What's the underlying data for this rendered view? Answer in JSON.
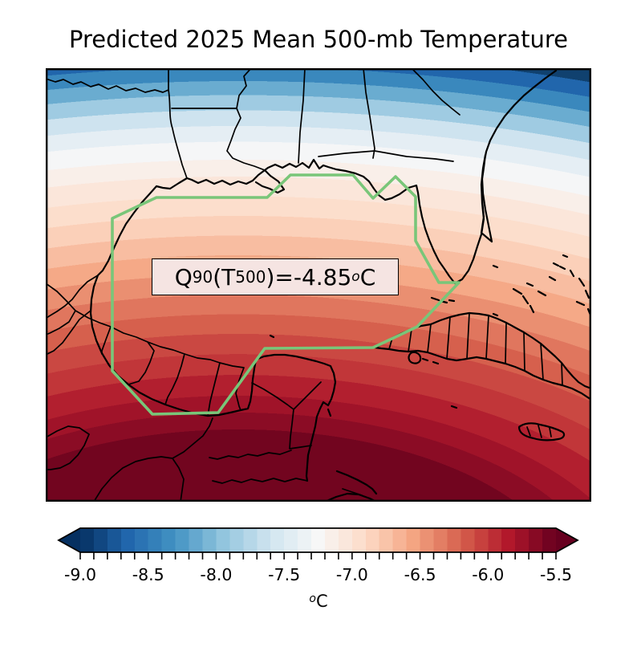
{
  "title": "Predicted 2025 Mean 500-mb Temperature",
  "annotation": {
    "q": "Q",
    "q_sub": "90",
    "t_open": "(T",
    "t_sub": "500",
    "rest": ")=-4.85",
    "deg_sup": "o",
    "unit": "C"
  },
  "colorbar": {
    "tick_labels": [
      "-9.0",
      "-8.5",
      "-8.0",
      "-7.5",
      "-7.0",
      "-6.5",
      "-6.0",
      "-5.5"
    ],
    "unit_sup": "o",
    "unit": "C",
    "segments": 35,
    "label_every": 5
  },
  "colors": {
    "coast": "#000000",
    "gulf_outline": "#79c679",
    "annotation_bg": "#f5e4e2",
    "annotation_border": "#000000",
    "frame": "#000000",
    "colormap_anchors": [
      [
        0.0,
        "#053061"
      ],
      [
        0.1,
        "#2166ac"
      ],
      [
        0.2,
        "#4393c3"
      ],
      [
        0.3,
        "#92c5de"
      ],
      [
        0.4,
        "#d1e5f0"
      ],
      [
        0.5,
        "#f7f7f7"
      ],
      [
        0.6,
        "#fddbc7"
      ],
      [
        0.7,
        "#f4a582"
      ],
      [
        0.8,
        "#d6604d"
      ],
      [
        0.9,
        "#b2182b"
      ],
      [
        1.0,
        "#67001f"
      ]
    ],
    "field_bands": [
      {
        "e": 0.3,
        "c": "#72051f"
      },
      {
        "e": 0.33,
        "c": "#8b0c25"
      },
      {
        "e": 0.36,
        "c": "#a01329"
      },
      {
        "e": 0.397,
        "c": "#b21f2f"
      },
      {
        "e": 0.434,
        "c": "#c13639"
      },
      {
        "e": 0.47,
        "c": "#ca4842"
      },
      {
        "e": 0.505,
        "c": "#d6604d"
      },
      {
        "e": 0.54,
        "c": "#e0765e"
      },
      {
        "e": 0.575,
        "c": "#ea8f71"
      },
      {
        "e": 0.61,
        "c": "#f5a987"
      },
      {
        "e": 0.645,
        "c": "#f8bda1"
      },
      {
        "e": 0.68,
        "c": "#fbd0b9"
      },
      {
        "e": 0.715,
        "c": "#fcdecc"
      },
      {
        "e": 0.75,
        "c": "#fbe6da"
      },
      {
        "e": 0.78,
        "c": "#f9efe9"
      },
      {
        "e": 0.812,
        "c": "#f5f6f7"
      },
      {
        "e": 0.84,
        "c": "#e5eef4"
      },
      {
        "e": 0.868,
        "c": "#cee3ef"
      },
      {
        "e": 0.895,
        "c": "#9fcbe2"
      },
      {
        "e": 0.92,
        "c": "#6aacd0"
      },
      {
        "e": 0.945,
        "c": "#3a88bd"
      },
      {
        "e": 0.97,
        "c": "#2166ac"
      },
      {
        "e": 1.0,
        "c": "#10416f"
      }
    ]
  },
  "chart_data": {
    "type": "heatmap",
    "title": "Predicted 2025 Mean 500-mb Temperature",
    "variable": "Mean 500-mb temperature, predicted 2025",
    "units": "°C",
    "colormap": "RdBu_r (dark blue cold to dark red warm), filled contours",
    "levels": {
      "min": -9.0,
      "max": -5.5,
      "step": 0.1,
      "extend": "both"
    },
    "colorbar_ticks": [
      -9.0,
      -8.5,
      -8.0,
      -7.5,
      -7.0,
      -6.5,
      -6.0,
      -5.5
    ],
    "colorbar_orientation": "horizontal",
    "annotation_value": {
      "statistic": "Q90(T500)",
      "value_c": -4.85,
      "display": "Q90(T500)=-4.85°C"
    },
    "region": "Gulf of Mexico with SE United States, Mexico, Yucatan, Cuba, Jamaica, Bahamas",
    "highlight": "Green polygon outlining the Gulf of Mexico basin",
    "field_reading": "Warmest (about -5.4 C, dark red) over southern Mexico and NW Caribbean at bottom-left; near -7.25 C (white band) along the northern Gulf coast; coldest (below -9 C, dark blue) over the inland SE United States at top"
  }
}
